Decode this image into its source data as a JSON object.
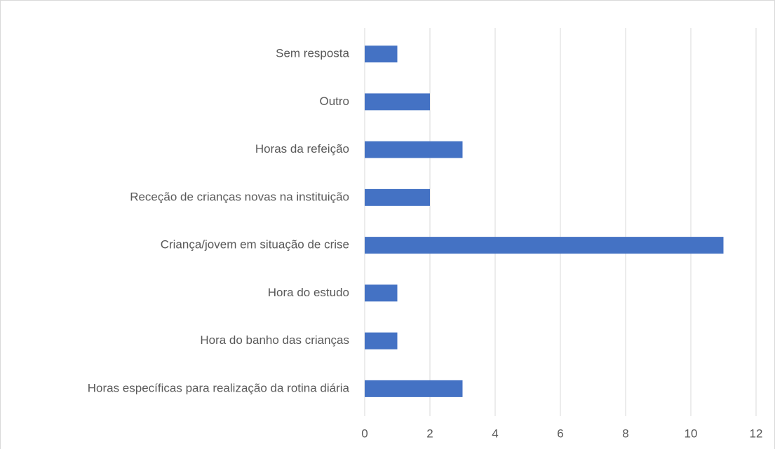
{
  "chart_data": {
    "type": "barh",
    "categories": [
      "Sem resposta",
      "Outro",
      "Horas da refeição",
      "Receção de crianças novas na instituição",
      "Criança/jovem em situação de crise",
      "Hora do estudo",
      "Hora do banho das crianças",
      "Horas específicas para realização da rotina diária"
    ],
    "values": [
      1,
      2,
      3,
      2,
      11,
      1,
      1,
      3
    ],
    "color": "#4472c4",
    "xlim": [
      0,
      12
    ],
    "xticks": [
      0,
      2,
      4,
      6,
      8,
      10,
      12
    ],
    "grid": true
  }
}
